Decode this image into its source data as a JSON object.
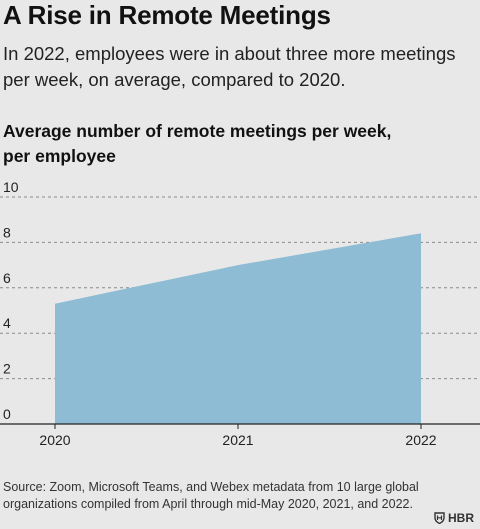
{
  "header": {
    "title": "A Rise in Remote Meetings",
    "subtitle": "In 2022, employees were in about three more meetings per week, on average, compared to 2020."
  },
  "chart_data": {
    "type": "area",
    "title": "Average number of remote meetings per week, per employee",
    "x": [
      "2020",
      "2021",
      "2022"
    ],
    "series": [
      {
        "values": [
          5.3,
          7.0,
          8.4
        ]
      }
    ],
    "yticks": [
      "0",
      "2",
      "4",
      "6",
      "8",
      "10"
    ],
    "ylim": [
      0,
      10
    ],
    "grid": true,
    "fill_color": "#8dbcd4",
    "grid_color": "#8a8a8a"
  },
  "footer": {
    "source": "Source: Zoom, Microsoft Teams, and Webex metadata from 10 large global organizations compiled from April through mid-May 2020, 2021, and 2022.",
    "brand": "HBR"
  }
}
